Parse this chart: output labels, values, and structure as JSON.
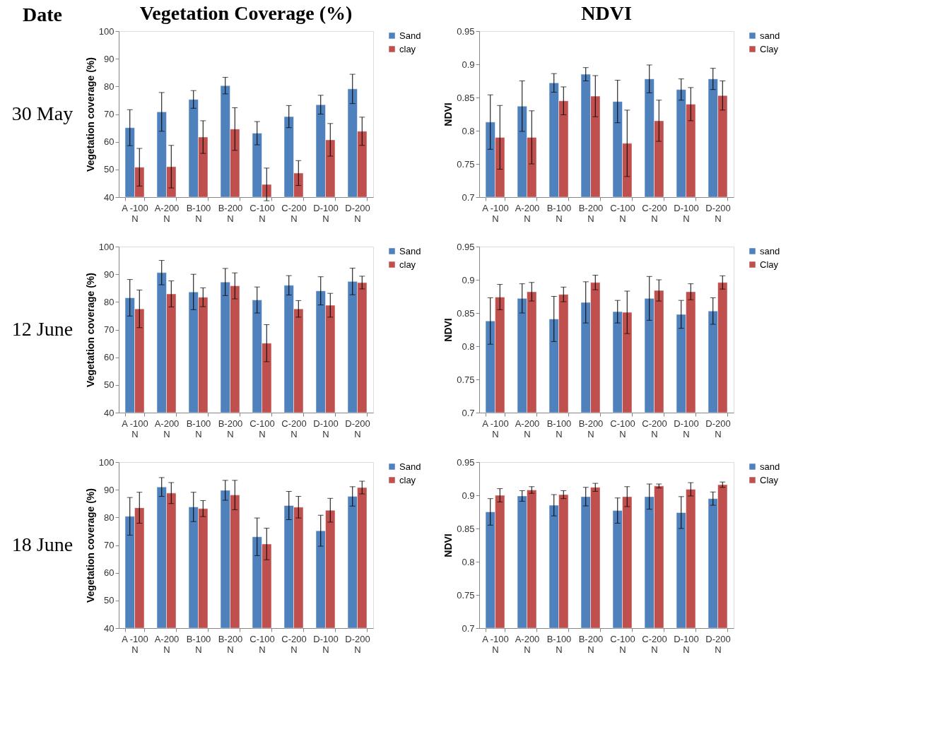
{
  "chart_data": [
    {
      "type": "bar",
      "title": "Vegetation Coverage (%)",
      "ylabel": "Vegetation coverage (%)",
      "annotations": [
        "Date",
        "30 May"
      ],
      "categories": [
        "A -100 N",
        "A-200 N",
        "B-100 N",
        "B-200 N",
        "C-100 N",
        "C-200 N",
        "D-100 N",
        "D-200 N"
      ],
      "ylim": [
        40,
        100
      ],
      "yticks": [
        40,
        50,
        60,
        70,
        80,
        90,
        100
      ],
      "legend": "right",
      "grid": false,
      "series": [
        {
          "name": "Sand",
          "color": "#4f81bd",
          "values": [
            65.1,
            70.8,
            75.3,
            80.3,
            63.1,
            69.1,
            73.4,
            79.1
          ],
          "errors": [
            6.5,
            7.0,
            3.2,
            3.0,
            4.2,
            4.0,
            3.4,
            5.3
          ]
        },
        {
          "name": "clay",
          "color": "#c0504d",
          "values": [
            50.8,
            51.0,
            61.7,
            64.6,
            44.6,
            48.7,
            60.7,
            63.8
          ],
          "errors": [
            6.8,
            7.7,
            5.9,
            7.7,
            5.9,
            4.5,
            5.9,
            5.1
          ]
        }
      ]
    },
    {
      "type": "bar",
      "title": "NDVI",
      "ylabel": "NDVI",
      "categories": [
        "A -100 N",
        "A-200 N",
        "B-100 N",
        "B-200 N",
        "C-100 N",
        "C-200 N",
        "D-100 N",
        "D-200 N"
      ],
      "ylim": [
        0.7,
        0.95
      ],
      "yticks": [
        0.7,
        0.75,
        0.8,
        0.85,
        0.9,
        0.95
      ],
      "legend": "right",
      "grid": false,
      "series": [
        {
          "name": "sand",
          "color": "#4f81bd",
          "values": [
            0.813,
            0.837,
            0.872,
            0.885,
            0.844,
            0.878,
            0.862,
            0.878
          ],
          "errors": [
            0.041,
            0.038,
            0.014,
            0.01,
            0.032,
            0.021,
            0.016,
            0.016
          ]
        },
        {
          "name": "Clay",
          "color": "#c0504d",
          "values": [
            0.79,
            0.79,
            0.845,
            0.852,
            0.781,
            0.815,
            0.84,
            0.853
          ],
          "errors": [
            0.048,
            0.04,
            0.021,
            0.031,
            0.05,
            0.031,
            0.025,
            0.022
          ]
        }
      ]
    },
    {
      "type": "bar",
      "ylabel": "Vegetation coverage (%)",
      "annotations": [
        "12 June"
      ],
      "categories": [
        "A -100 N",
        "A-200 N",
        "B-100 N",
        "B-200 N",
        "C-100 N",
        "C-200 N",
        "D-100 N",
        "D-200 N"
      ],
      "ylim": [
        40,
        100
      ],
      "yticks": [
        40,
        50,
        60,
        70,
        80,
        90,
        100
      ],
      "legend": "right",
      "grid": false,
      "series": [
        {
          "name": "Sand",
          "color": "#4f81bd",
          "values": [
            81.5,
            90.6,
            83.6,
            87.2,
            80.7,
            86.0,
            84.0,
            87.4
          ],
          "errors": [
            6.6,
            4.4,
            6.4,
            4.9,
            4.7,
            3.5,
            5.1,
            4.8
          ]
        },
        {
          "name": "clay",
          "color": "#c0504d",
          "values": [
            77.5,
            82.9,
            81.7,
            85.8,
            65.1,
            77.5,
            78.8,
            87.0
          ],
          "errors": [
            6.8,
            4.7,
            3.4,
            4.7,
            6.7,
            3.0,
            4.3,
            2.3
          ]
        }
      ]
    },
    {
      "type": "bar",
      "ylabel": "NDVI",
      "categories": [
        "A -100 N",
        "A-200 N",
        "B-100 N",
        "B-200 N",
        "C-100 N",
        "C-200 N",
        "D-100 N",
        "D-200 N"
      ],
      "ylim": [
        0.7,
        0.95
      ],
      "yticks": [
        0.7,
        0.75,
        0.8,
        0.85,
        0.9,
        0.95
      ],
      "legend": "right",
      "grid": false,
      "series": [
        {
          "name": "sand",
          "color": "#4f81bd",
          "values": [
            0.838,
            0.872,
            0.841,
            0.866,
            0.852,
            0.872,
            0.848,
            0.853
          ],
          "errors": [
            0.035,
            0.022,
            0.034,
            0.031,
            0.017,
            0.033,
            0.021,
            0.02
          ]
        },
        {
          "name": "Clay",
          "color": "#c0504d",
          "values": [
            0.874,
            0.882,
            0.878,
            0.896,
            0.851,
            0.884,
            0.882,
            0.896
          ],
          "errors": [
            0.019,
            0.014,
            0.011,
            0.011,
            0.032,
            0.016,
            0.012,
            0.01
          ]
        }
      ]
    },
    {
      "type": "bar",
      "ylabel": "Vegetation coverage (%)",
      "annotations": [
        "18 June"
      ],
      "categories": [
        "A -100 N",
        "A-200 N",
        "B-100 N",
        "B-200 N",
        "C-100 N",
        "C-200 N",
        "D-100 N",
        "D-200 N"
      ],
      "ylim": [
        40,
        100
      ],
      "yticks": [
        40,
        50,
        60,
        70,
        80,
        90,
        100
      ],
      "legend": "right",
      "grid": false,
      "series": [
        {
          "name": "Sand",
          "color": "#4f81bd",
          "values": [
            80.4,
            91.0,
            83.8,
            89.8,
            73.0,
            84.3,
            75.2,
            87.6
          ],
          "errors": [
            6.8,
            3.4,
            5.3,
            3.6,
            6.8,
            5.1,
            5.6,
            3.5
          ]
        },
        {
          "name": "clay",
          "color": "#c0504d",
          "values": [
            83.5,
            88.8,
            83.2,
            88.1,
            70.4,
            83.7,
            82.6,
            90.8
          ],
          "errors": [
            5.6,
            3.8,
            2.9,
            5.3,
            5.7,
            3.9,
            4.3,
            2.3
          ]
        }
      ]
    },
    {
      "type": "bar",
      "ylabel": "NDVI",
      "categories": [
        "A -100 N",
        "A-200 N",
        "B-100 N",
        "B-200 N",
        "C-100 N",
        "C-200 N",
        "D-100 N",
        "D-200 N"
      ],
      "ylim": [
        0.7,
        0.95
      ],
      "yticks": [
        0.7,
        0.75,
        0.8,
        0.85,
        0.9,
        0.95
      ],
      "legend": "right",
      "grid": false,
      "series": [
        {
          "name": "sand",
          "color": "#4f81bd",
          "values": [
            0.875,
            0.899,
            0.885,
            0.898,
            0.877,
            0.898,
            0.874,
            0.895
          ],
          "errors": [
            0.02,
            0.008,
            0.016,
            0.014,
            0.019,
            0.019,
            0.024,
            0.01
          ]
        },
        {
          "name": "Clay",
          "color": "#c0504d",
          "values": [
            0.9,
            0.908,
            0.901,
            0.912,
            0.898,
            0.914,
            0.909,
            0.916
          ],
          "errors": [
            0.01,
            0.005,
            0.006,
            0.006,
            0.015,
            0.003,
            0.01,
            0.004
          ]
        }
      ]
    }
  ]
}
